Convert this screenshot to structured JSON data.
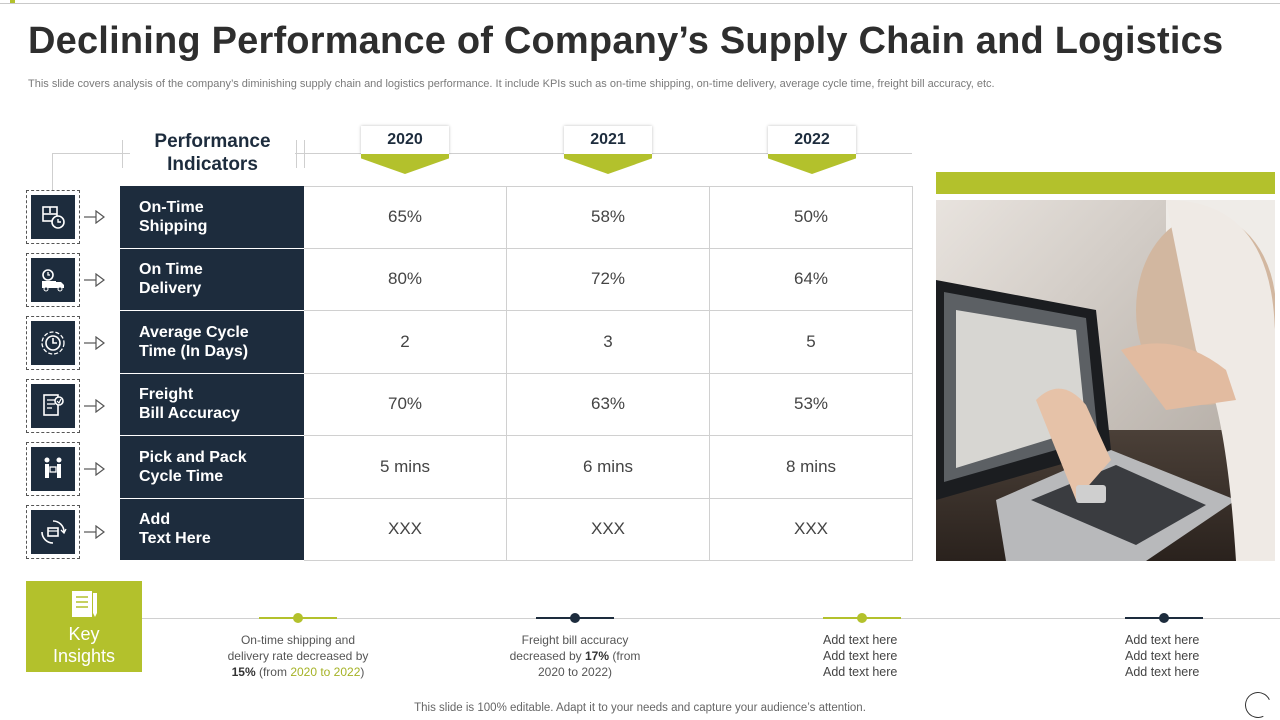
{
  "slide": {
    "title": "Declining Performance of Company’s Supply Chain and Logistics",
    "subtitle": "This slide covers analysis of the company’s diminishing supply chain and logistics performance. It include KPIs such as on-time shipping, on-time delivery, average cycle time, freight bill accuracy, etc.",
    "footer": "This slide is 100% editable. Adapt it to your needs and capture your audience’s attention."
  },
  "table": {
    "header_label_line1": "Performance",
    "header_label_line2": "Indicators",
    "years": [
      "2020",
      "2021",
      "2022"
    ],
    "rows": [
      {
        "label_line1": "On-Time",
        "label_line2": "Shipping",
        "values": [
          "65%",
          "58%",
          "50%"
        ],
        "icon": "package-clock-icon"
      },
      {
        "label_line1": "On Time",
        "label_line2": "Delivery",
        "values": [
          "80%",
          "72%",
          "64%"
        ],
        "icon": "delivery-truck-clock-icon"
      },
      {
        "label_line1": "Average Cycle",
        "label_line2": "Time (In Days)",
        "values": [
          "2",
          "3",
          "5"
        ],
        "icon": "cycle-clock-icon"
      },
      {
        "label_line1": "Freight",
        "label_line2": "Bill Accuracy",
        "values": [
          "70%",
          "63%",
          "53%"
        ],
        "icon": "invoice-check-icon"
      },
      {
        "label_line1": "Pick and Pack",
        "label_line2": "Cycle Time",
        "values": [
          "5 mins",
          "6 mins",
          "8 mins"
        ],
        "icon": "people-exchange-icon"
      },
      {
        "label_line1": "Add",
        "label_line2": "Text Here",
        "values": [
          "XXX",
          "XXX",
          "XXX"
        ],
        "icon": "box-cycle-icon"
      }
    ]
  },
  "key_insights": {
    "line1": "Key",
    "line2": "Insights",
    "insight1": {
      "line1": "On-time shipping and",
      "line2": "delivery rate decreased by",
      "pct": "15%",
      "from_prefix": " (from ",
      "range": "2020 to 2022",
      "suffix": ")"
    },
    "insight2": {
      "line1": "Freight bill accuracy",
      "pre": "decreased by ",
      "pct": "17%",
      "post": " (from",
      "line3": "2020 to 2022)"
    },
    "insight3": [
      "Add text here",
      "Add text here",
      "Add text here"
    ],
    "insight4": [
      "Add text here",
      "Add text here",
      "Add text here"
    ]
  },
  "colors": {
    "accent": "#b3c12c",
    "navy": "#1d2c3d"
  }
}
